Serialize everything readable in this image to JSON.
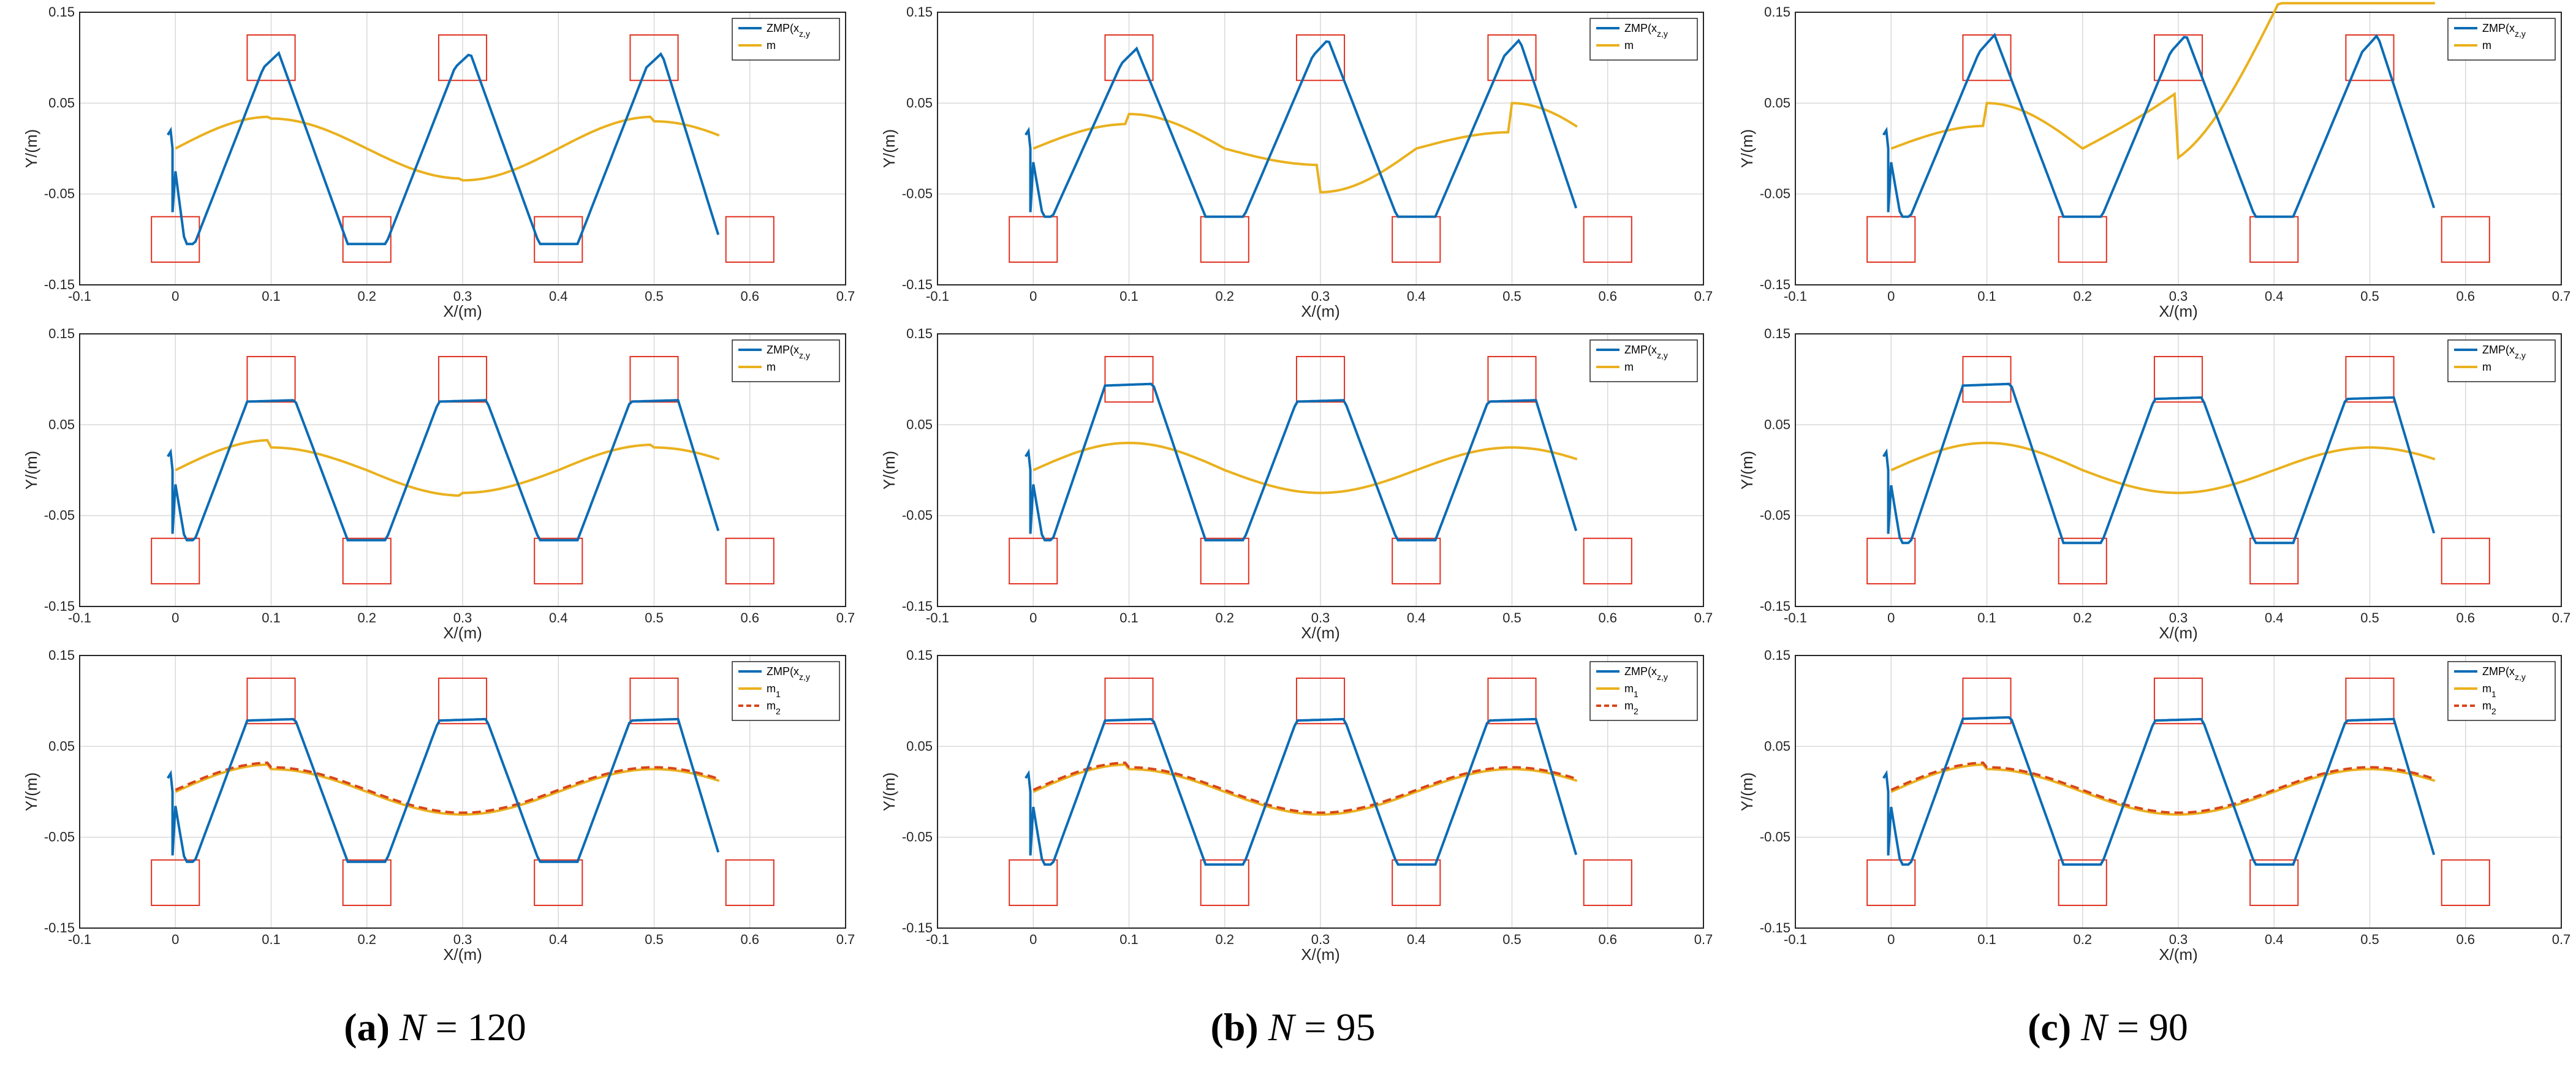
{
  "figure": {
    "captions": [
      {
        "label": "(a)",
        "param": "N",
        "eq": "=",
        "value": "120"
      },
      {
        "label": "(b)",
        "param": "N",
        "eq": "=",
        "value": "95"
      },
      {
        "label": "(c)",
        "param": "N",
        "eq": "=",
        "value": "90"
      }
    ]
  },
  "colors": {
    "zmp": "#0b6cb5",
    "m": "#eab11e",
    "m2": "#d9461a",
    "foot": "#e0301f",
    "grid": "#d9d9d9"
  },
  "chart_data": [
    {
      "id": "a1",
      "type": "line",
      "xlabel": "X/(m)",
      "ylabel": "Y/(m)",
      "xlim": [
        -0.1,
        0.7
      ],
      "ylim": [
        -0.15,
        0.15
      ],
      "xticks": [
        "-0.1",
        "0",
        "0.1",
        "0.2",
        "0.3",
        "0.4",
        "0.5",
        "0.6",
        "0.7"
      ],
      "yticks": [
        "-0.15",
        "-0.05",
        "0.05",
        "0.15"
      ],
      "legend": [
        "ZMP(x_z,y_z)",
        "m"
      ],
      "zmp_style": "overshoot",
      "peaks": [
        0.105,
        0.105,
        0.105
      ],
      "troughs": [
        -0.105,
        -0.105,
        -0.105
      ],
      "m_amp": [
        0.035,
        0.033,
        0.033,
        0.035,
        0.035,
        0.03
      ],
      "drift": 0,
      "foot_x": [
        0,
        0.1,
        0.2,
        0.3,
        0.4,
        0.5,
        0.6
      ]
    },
    {
      "id": "b1",
      "type": "line",
      "xlabel": "X/(m)",
      "ylabel": "Y/(m)",
      "xlim": [
        -0.1,
        0.7
      ],
      "ylim": [
        -0.15,
        0.15
      ],
      "xticks": [
        "-0.1",
        "0",
        "0.1",
        "0.2",
        "0.3",
        "0.4",
        "0.5",
        "0.6",
        "0.7"
      ],
      "yticks": [
        "-0.15",
        "-0.05",
        "0.05",
        "0.15"
      ],
      "legend": [
        "ZMP(x_z,y_z)",
        "m"
      ],
      "zmp_style": "peak",
      "peaks": [
        0.11,
        0.12,
        0.12
      ],
      "troughs": [
        -0.075,
        -0.075,
        -0.075
      ],
      "m_amp": [
        0.027,
        0.038,
        0.018,
        0.048,
        0.018,
        0.05
      ],
      "drift": 0,
      "foot_x": [
        0,
        0.1,
        0.2,
        0.3,
        0.4,
        0.5,
        0.6
      ]
    },
    {
      "id": "c1",
      "type": "line",
      "xlabel": "X/(m)",
      "ylabel": "Y/(m)",
      "xlim": [
        -0.1,
        0.7
      ],
      "ylim": [
        -0.15,
        0.15
      ],
      "xticks": [
        "-0.1",
        "0",
        "0.1",
        "0.2",
        "0.3",
        "0.4",
        "0.5",
        "0.6",
        "0.7"
      ],
      "yticks": [
        "-0.15",
        "-0.05",
        "0.05",
        "0.15"
      ],
      "legend": [
        "ZMP(x_z,y_z)",
        "m"
      ],
      "zmp_style": "peak",
      "peaks": [
        0.125,
        0.125,
        0.125
      ],
      "troughs": [
        -0.075,
        -0.075,
        -0.075
      ],
      "m_amp": [
        0.025,
        0.05,
        0.012,
        0.085,
        0.09,
        0.16
      ],
      "drift": 1,
      "foot_x": [
        0,
        0.1,
        0.2,
        0.3,
        0.4,
        0.5,
        0.6
      ]
    },
    {
      "id": "a2",
      "type": "line",
      "xlabel": "X/(m)",
      "ylabel": "Y/(m)",
      "xlim": [
        -0.1,
        0.7
      ],
      "ylim": [
        -0.15,
        0.15
      ],
      "xticks": [
        "-0.1",
        "0",
        "0.1",
        "0.2",
        "0.3",
        "0.4",
        "0.5",
        "0.6",
        "0.7"
      ],
      "yticks": [
        "-0.15",
        "-0.05",
        "0.05",
        "0.15"
      ],
      "legend": [
        "ZMP(x_z,y_z)",
        "m"
      ],
      "zmp_style": "flat",
      "peaks": [
        0.077,
        0.077,
        0.077
      ],
      "troughs": [
        -0.077,
        -0.077,
        -0.077
      ],
      "m_amp": [
        0.033,
        0.025,
        0.028,
        0.025,
        0.028,
        0.025
      ],
      "drift": 0,
      "foot_x": [
        0,
        0.1,
        0.2,
        0.3,
        0.4,
        0.5,
        0.6
      ]
    },
    {
      "id": "b2",
      "type": "line",
      "xlabel": "X/(m)",
      "ylabel": "Y/(m)",
      "xlim": [
        -0.1,
        0.7
      ],
      "ylim": [
        -0.15,
        0.15
      ],
      "xticks": [
        "-0.1",
        "0",
        "0.1",
        "0.2",
        "0.3",
        "0.4",
        "0.5",
        "0.6",
        "0.7"
      ],
      "yticks": [
        "-0.15",
        "-0.05",
        "0.05",
        "0.15"
      ],
      "legend": [
        "ZMP(x_z,y_z)",
        "m"
      ],
      "zmp_style": "flat",
      "peaks": [
        0.095,
        0.077,
        0.077
      ],
      "troughs": [
        -0.077,
        -0.077,
        -0.077
      ],
      "m_amp": [
        0.03,
        0.03,
        0.025,
        0.025,
        0.025,
        0.025
      ],
      "drift": 0,
      "foot_x": [
        0,
        0.1,
        0.2,
        0.3,
        0.4,
        0.5,
        0.6
      ]
    },
    {
      "id": "c2",
      "type": "line",
      "xlabel": "X/(m)",
      "ylabel": "Y/(m)",
      "xlim": [
        -0.1,
        0.7
      ],
      "ylim": [
        -0.15,
        0.15
      ],
      "xticks": [
        "-0.1",
        "0",
        "0.1",
        "0.2",
        "0.3",
        "0.4",
        "0.5",
        "0.6",
        "0.7"
      ],
      "yticks": [
        "-0.15",
        "-0.05",
        "0.05",
        "0.15"
      ],
      "legend": [
        "ZMP(x_z,y_z)",
        "m"
      ],
      "zmp_style": "flat",
      "peaks": [
        0.095,
        0.08,
        0.08
      ],
      "troughs": [
        -0.08,
        -0.08,
        -0.08
      ],
      "m_amp": [
        0.03,
        0.03,
        0.025,
        0.025,
        0.025,
        0.025
      ],
      "drift": 0,
      "foot_x": [
        0,
        0.1,
        0.2,
        0.3,
        0.4,
        0.5,
        0.6
      ]
    },
    {
      "id": "a3",
      "type": "line",
      "xlabel": "X/(m)",
      "ylabel": "Y/(m)",
      "xlim": [
        -0.1,
        0.7
      ],
      "ylim": [
        -0.15,
        0.15
      ],
      "xticks": [
        "-0.1",
        "0",
        "0.1",
        "0.2",
        "0.3",
        "0.4",
        "0.5",
        "0.6",
        "0.7"
      ],
      "yticks": [
        "-0.15",
        "-0.05",
        "0.05",
        "0.15"
      ],
      "legend": [
        "ZMP(x_z,y_z)",
        "m_1",
        "m_2"
      ],
      "zmp_style": "flat",
      "peaks": [
        0.08,
        0.08,
        0.08
      ],
      "troughs": [
        -0.077,
        -0.077,
        -0.077
      ],
      "m_amp": [
        0.03,
        0.025,
        0.025,
        0.025,
        0.025,
        0.025
      ],
      "drift": 0,
      "foot_x": [
        0,
        0.1,
        0.2,
        0.3,
        0.4,
        0.5,
        0.6
      ]
    },
    {
      "id": "b3",
      "type": "line",
      "xlabel": "X/(m)",
      "ylabel": "Y/(m)",
      "xlim": [
        -0.1,
        0.7
      ],
      "ylim": [
        -0.15,
        0.15
      ],
      "xticks": [
        "-0.1",
        "0",
        "0.1",
        "0.2",
        "0.3",
        "0.4",
        "0.5",
        "0.6",
        "0.7"
      ],
      "yticks": [
        "-0.15",
        "-0.05",
        "0.05",
        "0.15"
      ],
      "legend": [
        "ZMP(x_z,y_z)",
        "m_1",
        "m_2"
      ],
      "zmp_style": "flat",
      "peaks": [
        0.08,
        0.08,
        0.08
      ],
      "troughs": [
        -0.08,
        -0.08,
        -0.08
      ],
      "m_amp": [
        0.03,
        0.025,
        0.025,
        0.025,
        0.025,
        0.025
      ],
      "drift": 0,
      "foot_x": [
        0,
        0.1,
        0.2,
        0.3,
        0.4,
        0.5,
        0.6
      ]
    },
    {
      "id": "c3",
      "type": "line",
      "xlabel": "X/(m)",
      "ylabel": "Y/(m)",
      "xlim": [
        -0.1,
        0.7
      ],
      "ylim": [
        -0.15,
        0.15
      ],
      "xticks": [
        "-0.1",
        "0",
        "0.1",
        "0.2",
        "0.3",
        "0.4",
        "0.5",
        "0.6",
        "0.7"
      ],
      "yticks": [
        "-0.15",
        "-0.05",
        "0.05",
        "0.15"
      ],
      "legend": [
        "ZMP(x_z,y_z)",
        "m_1",
        "m_2"
      ],
      "zmp_style": "flat",
      "peaks": [
        0.082,
        0.08,
        0.08
      ],
      "troughs": [
        -0.08,
        -0.08,
        -0.08
      ],
      "m_amp": [
        0.03,
        0.025,
        0.025,
        0.025,
        0.025,
        0.025
      ],
      "drift": 0,
      "foot_x": [
        0,
        0.1,
        0.2,
        0.3,
        0.4,
        0.5,
        0.6
      ]
    }
  ]
}
